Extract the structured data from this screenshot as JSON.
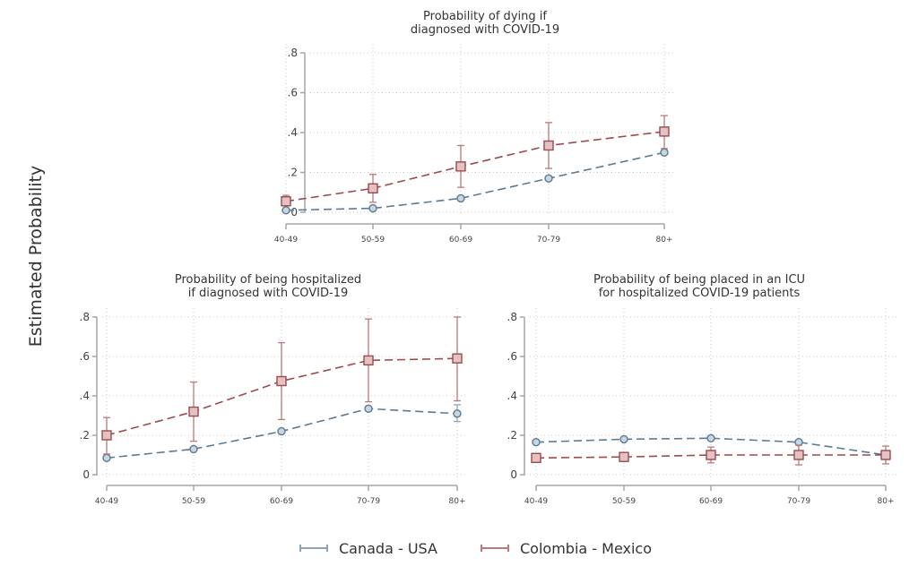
{
  "chart_data": {
    "type": "line",
    "ylabel": "Estimated Probability",
    "legend": {
      "placement": "bottom",
      "entries": [
        {
          "name": "Canada - USA",
          "color": "#5b7a93",
          "marker": "circle"
        },
        {
          "name": "Colombia - Mexico",
          "color": "#9c4a4d",
          "marker": "square"
        }
      ]
    },
    "panels": [
      {
        "id": "dying",
        "title_lines": [
          "Probability of dying if",
          "diagnosed with COVID-19"
        ],
        "categories": [
          "40-49",
          "50-59",
          "60-69",
          "70-79",
          "80+"
        ],
        "yticks": [
          0,
          0.2,
          0.4,
          0.6,
          0.8
        ],
        "ytick_labels": [
          "0",
          ".2",
          ".4",
          ".6",
          ".8"
        ],
        "ylim": [
          0,
          0.8
        ],
        "grid": true,
        "series": [
          {
            "name": "Canada - USA",
            "values": [
              0.01,
              0.02,
              0.07,
              0.17,
              0.3
            ],
            "ci_low": [
              0.01,
              0.02,
              0.07,
              0.17,
              0.3
            ],
            "ci_high": [
              0.01,
              0.02,
              0.07,
              0.17,
              0.3
            ]
          },
          {
            "name": "Colombia - Mexico",
            "values": [
              0.055,
              0.12,
              0.23,
              0.335,
              0.405
            ],
            "ci_low": [
              0.035,
              0.05,
              0.125,
              0.22,
              0.32
            ],
            "ci_high": [
              0.085,
              0.19,
              0.335,
              0.45,
              0.485
            ]
          }
        ]
      },
      {
        "id": "hospitalized",
        "title_lines": [
          "Probability of being hospitalized",
          "if diagnosed with COVID-19"
        ],
        "categories": [
          "40-49",
          "50-59",
          "60-69",
          "70-79",
          "80+"
        ],
        "yticks": [
          0,
          0.2,
          0.4,
          0.6,
          0.8
        ],
        "ytick_labels": [
          "0",
          ".2",
          ".4",
          ".6",
          ".8"
        ],
        "ylim": [
          0,
          0.8
        ],
        "grid": true,
        "series": [
          {
            "name": "Canada - USA",
            "values": [
              0.085,
              0.13,
              0.22,
              0.335,
              0.31
            ],
            "ci_low": [
              0.08,
              0.125,
              0.215,
              0.33,
              0.27
            ],
            "ci_high": [
              0.09,
              0.135,
              0.225,
              0.34,
              0.355
            ]
          },
          {
            "name": "Colombia - Mexico",
            "values": [
              0.2,
              0.32,
              0.475,
              0.58,
              0.59
            ],
            "ci_low": [
              0.105,
              0.17,
              0.28,
              0.37,
              0.375
            ],
            "ci_high": [
              0.29,
              0.47,
              0.67,
              0.79,
              0.8
            ]
          }
        ]
      },
      {
        "id": "icu",
        "title_lines": [
          "Probability of being placed in an ICU",
          "for hospitalized COVID-19 patients"
        ],
        "categories": [
          "40-49",
          "50-59",
          "60-69",
          "70-79",
          "80+"
        ],
        "yticks": [
          0,
          0.2,
          0.4,
          0.6,
          0.8
        ],
        "ytick_labels": [
          "0",
          ".2",
          ".4",
          ".6",
          ".8"
        ],
        "ylim": [
          0,
          0.8
        ],
        "grid": true,
        "series": [
          {
            "name": "Canada - USA",
            "values": [
              0.165,
              0.18,
              0.185,
              0.165,
              0.1
            ],
            "ci_low": [
              0.16,
              0.175,
              0.18,
              0.16,
              0.095
            ],
            "ci_high": [
              0.17,
              0.185,
              0.19,
              0.17,
              0.105
            ]
          },
          {
            "name": "Colombia - Mexico",
            "values": [
              0.085,
              0.09,
              0.1,
              0.1,
              0.1
            ],
            "ci_low": [
              0.075,
              0.075,
              0.06,
              0.05,
              0.055
            ],
            "ci_high": [
              0.095,
              0.11,
              0.14,
              0.15,
              0.145
            ]
          }
        ]
      }
    ]
  }
}
